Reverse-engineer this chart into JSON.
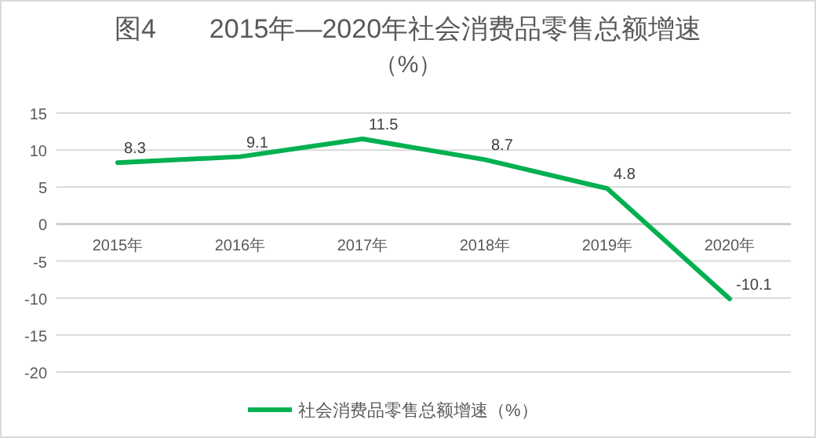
{
  "chart_data": {
    "type": "line",
    "title": "图4　　2015年—2020年社会消费品零售总额增速",
    "subtitle": "（%）",
    "categories": [
      "2015年",
      "2016年",
      "2017年",
      "2018年",
      "2019年",
      "2020年"
    ],
    "series": [
      {
        "name": "社会消费品零售总额增速（%）",
        "color": "#00b050",
        "values": [
          8.3,
          9.1,
          11.5,
          8.7,
          4.8,
          -10.1
        ]
      }
    ],
    "ylim": [
      -20,
      15
    ],
    "yticks": [
      -20,
      -15,
      -10,
      -5,
      0,
      5,
      10,
      15
    ],
    "grid": "y",
    "legend": "bottom",
    "data_labels": true,
    "marker": "none",
    "line_style": "solid"
  }
}
